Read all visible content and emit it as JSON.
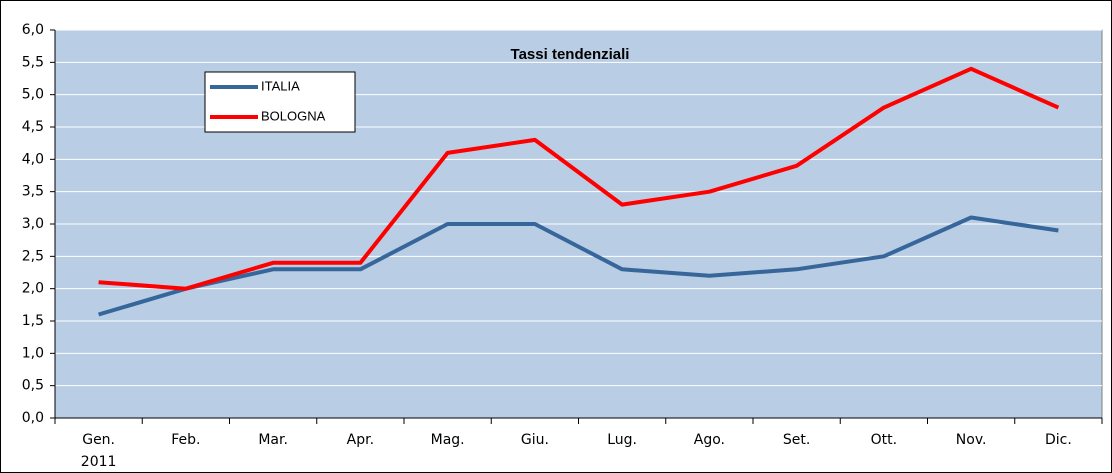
{
  "chart_data": {
    "type": "line",
    "title": "Tassi tendenziali",
    "categories": [
      "Gen.",
      "Feb.",
      "Mar.",
      "Apr.",
      "Mag.",
      "Giu.",
      "Lug.",
      "Ago.",
      "Set.",
      "Ott.",
      "Nov.",
      "Dic."
    ],
    "year_label": "2011",
    "series": [
      {
        "name": "ITALIA",
        "color": "#36669a",
        "values": [
          1.6,
          2.0,
          2.3,
          2.3,
          3.0,
          3.0,
          2.3,
          2.2,
          2.3,
          2.5,
          3.1,
          2.9
        ]
      },
      {
        "name": "BOLOGNA",
        "color": "#ff0000",
        "values": [
          2.1,
          2.0,
          2.4,
          2.4,
          4.1,
          4.3,
          3.3,
          3.5,
          3.9,
          4.8,
          5.4,
          4.8
        ]
      }
    ],
    "ylim": [
      0,
      6
    ],
    "yticks": [
      {
        "value": 0,
        "label": "0,0"
      },
      {
        "value": 0.5,
        "label": "0,5"
      },
      {
        "value": 1,
        "label": "1,0"
      },
      {
        "value": 1.5,
        "label": "1,5"
      },
      {
        "value": 2,
        "label": "2,0"
      },
      {
        "value": 2.5,
        "label": "2,5"
      },
      {
        "value": 3,
        "label": "3,0"
      },
      {
        "value": 3.5,
        "label": "3,5"
      },
      {
        "value": 4,
        "label": "4,0"
      },
      {
        "value": 4.5,
        "label": "4,5"
      },
      {
        "value": 5,
        "label": "5,0"
      },
      {
        "value": 5.5,
        "label": "5,5"
      },
      {
        "value": 6,
        "label": "6,0"
      }
    ],
    "grid": true,
    "plot_background": "#b9cde5",
    "legend": "upper left"
  }
}
